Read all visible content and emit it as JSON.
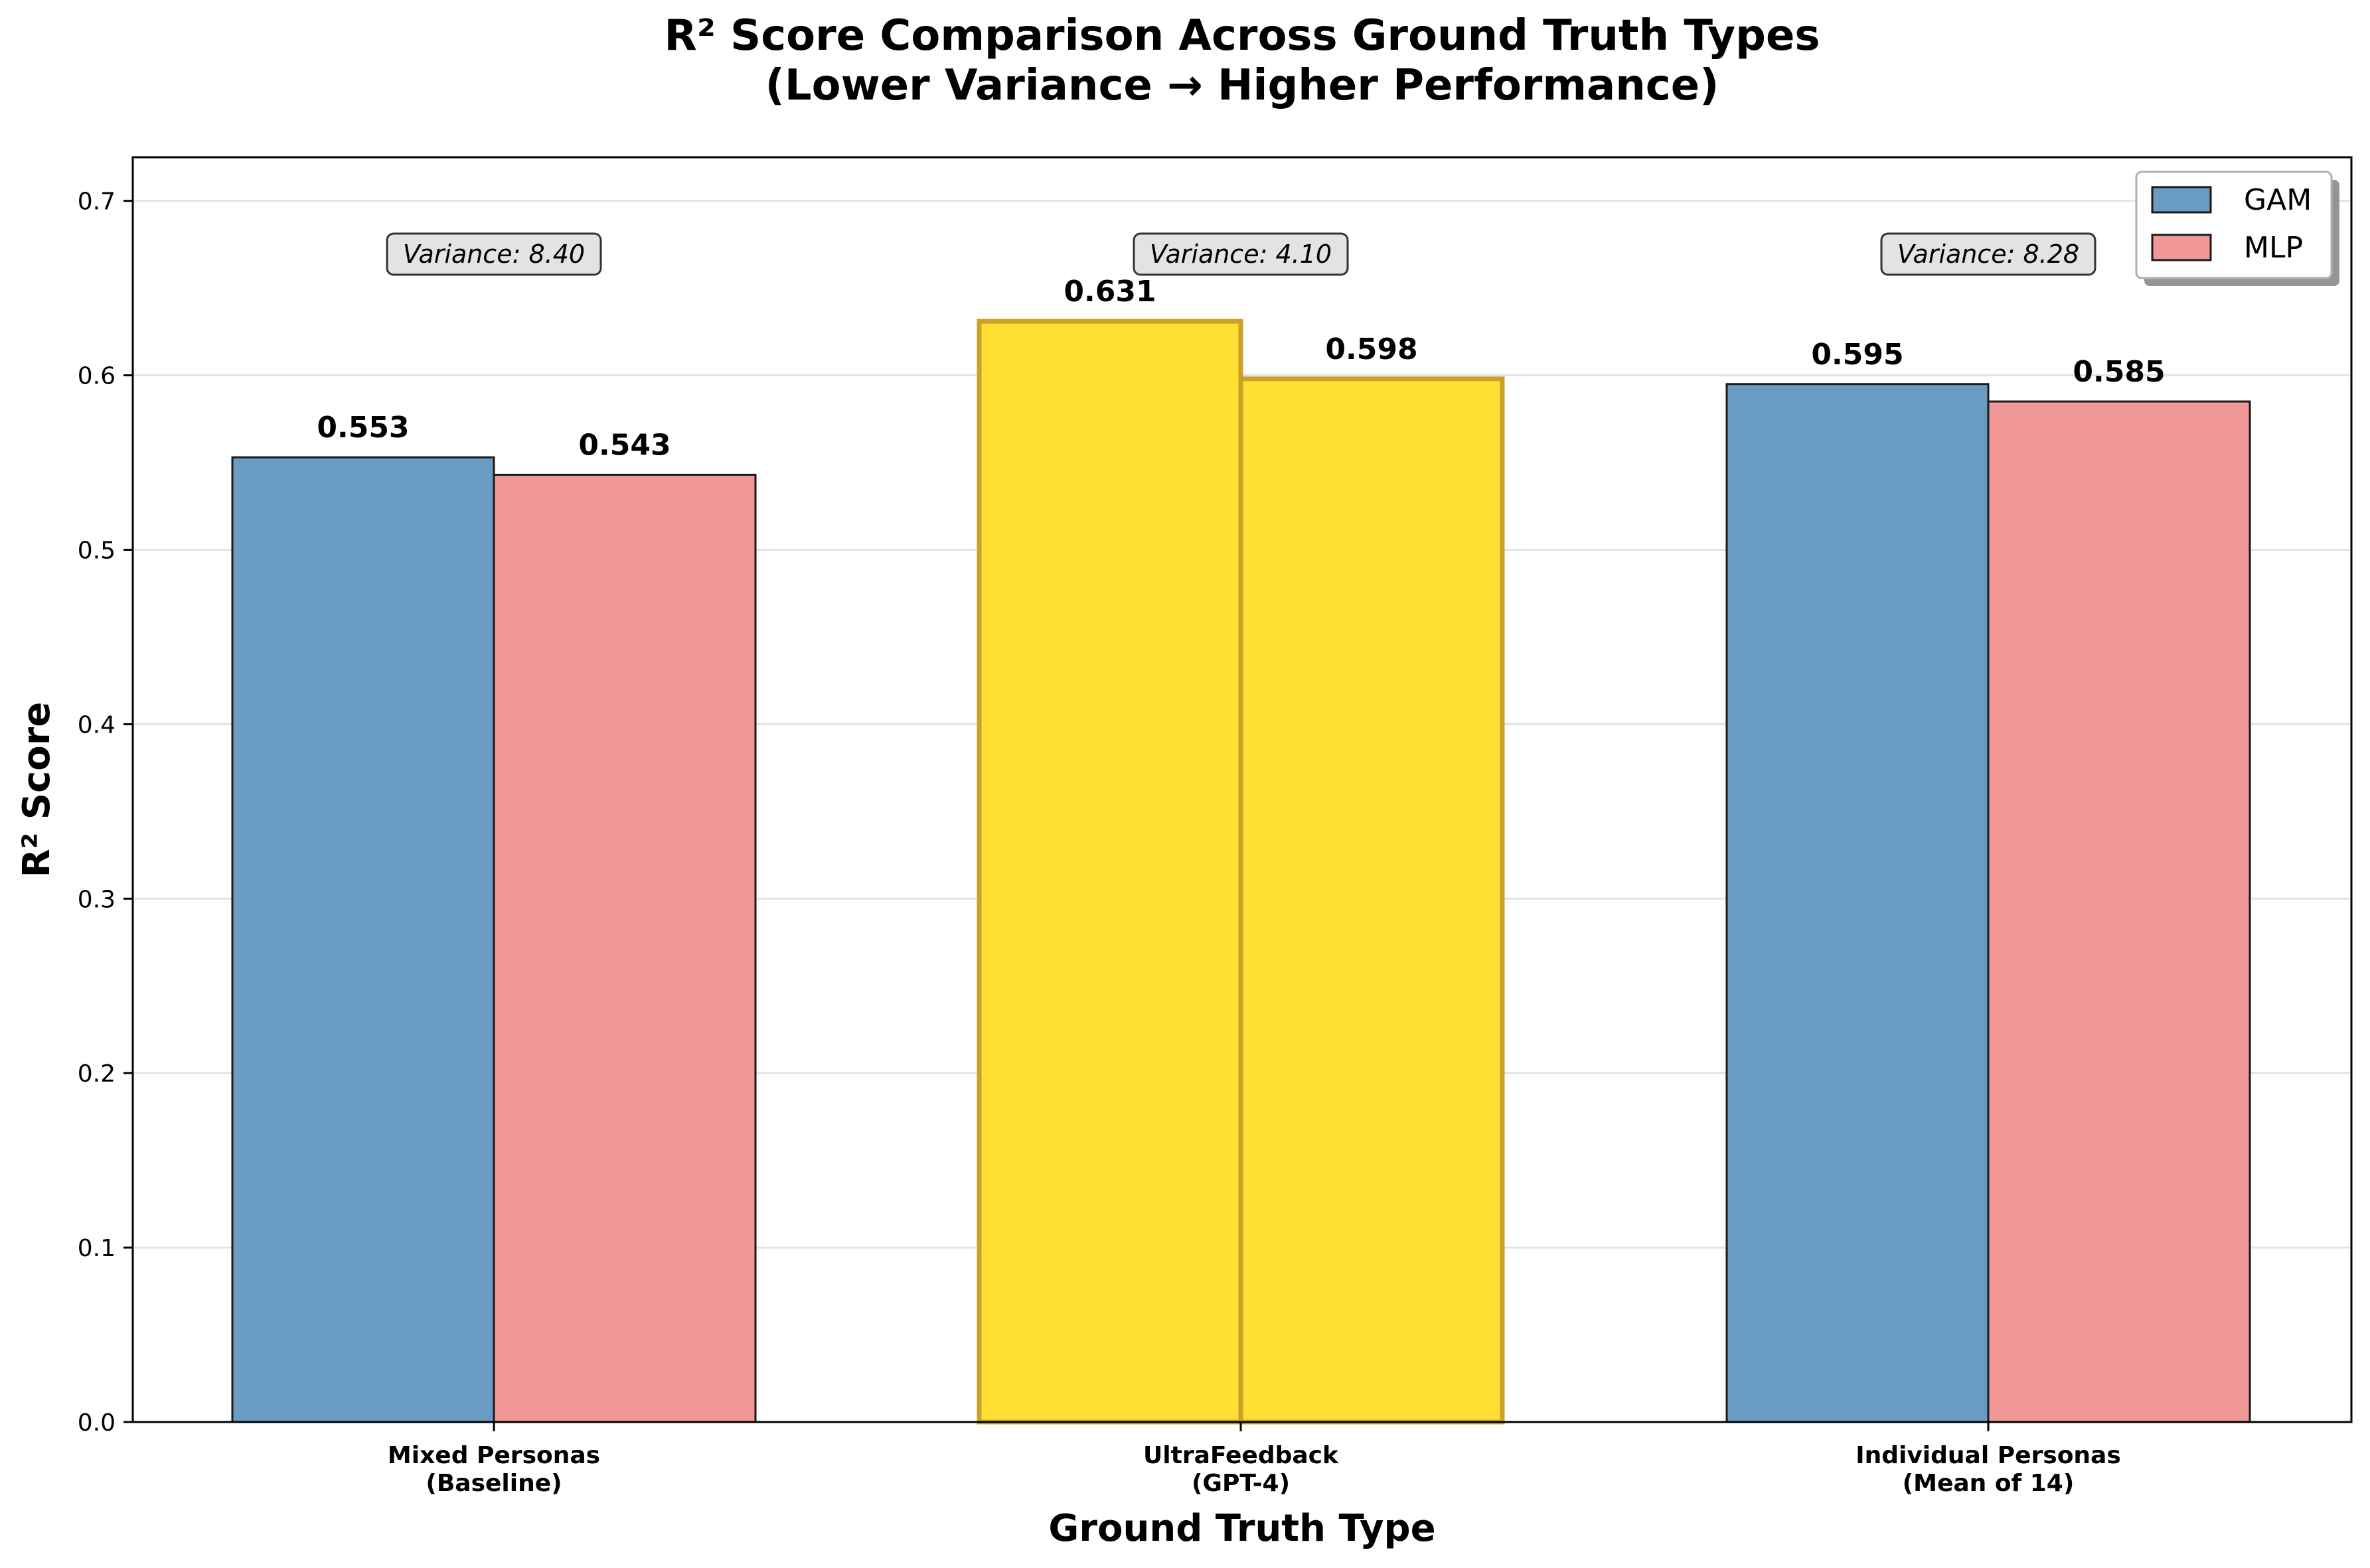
{
  "chart_data": {
    "type": "bar",
    "title": [
      "R² Score Comparison Across Ground Truth Types",
      "(Lower Variance → Higher Performance)"
    ],
    "xlabel": "Ground Truth Type",
    "ylabel": "R² Score",
    "ylim": [
      0,
      0.725
    ],
    "yticks": [
      "0.0",
      "0.1",
      "0.2",
      "0.3",
      "0.4",
      "0.5",
      "0.6",
      "0.7"
    ],
    "grid": "horizontal",
    "legend_placement": "top-right",
    "categories": [
      [
        "Mixed Personas",
        "(Baseline)"
      ],
      [
        "UltraFeedback",
        "(GPT-4)"
      ],
      [
        "Individual Personas",
        "(Mean of 14)"
      ]
    ],
    "series": [
      {
        "name": "GAM",
        "color": "#6a9bc3",
        "values": [
          0.553,
          0.631,
          0.595
        ],
        "labels": [
          "0.553",
          "0.631",
          "0.595"
        ]
      },
      {
        "name": "MLP",
        "color": "#f19898",
        "values": [
          0.543,
          0.598,
          0.585
        ],
        "labels": [
          "0.543",
          "0.598",
          "0.585"
        ]
      }
    ],
    "highlight": {
      "category_index": 1,
      "fill": "#ffdf33",
      "edge": "#c9a22a"
    },
    "annotations": [
      "Variance: 8.40",
      "Variance: 4.10",
      "Variance: 8.28"
    ]
  }
}
